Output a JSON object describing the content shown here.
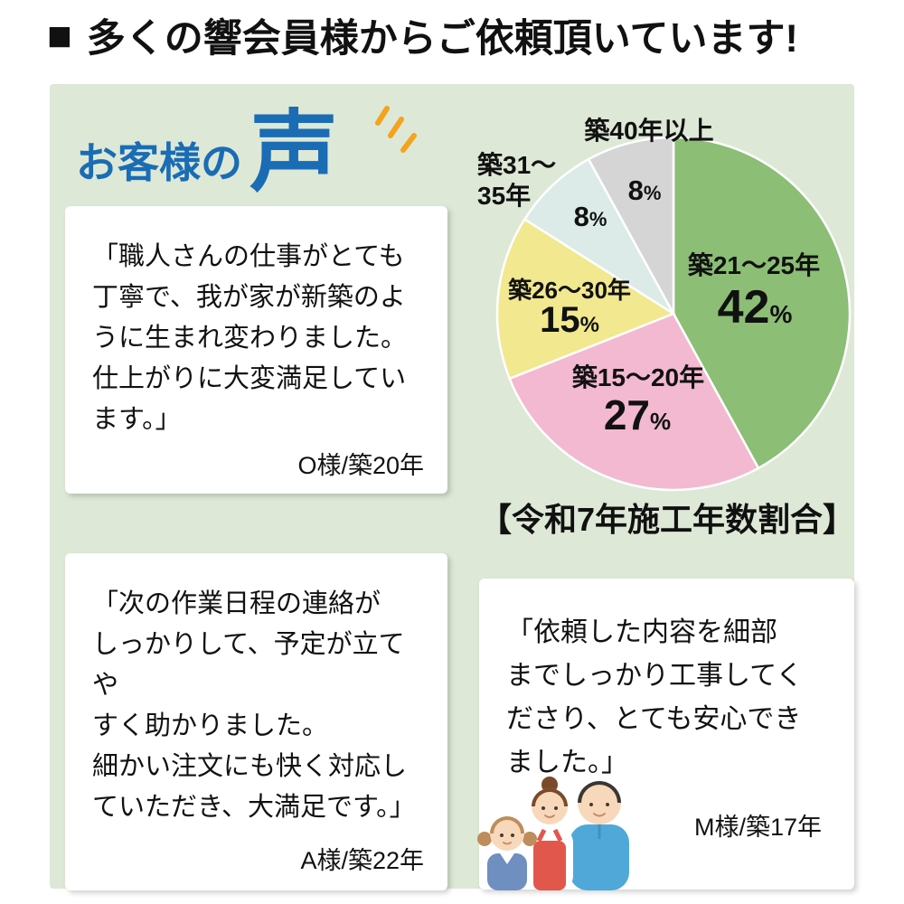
{
  "header": {
    "bullet": "■",
    "title": "多くの響会員様からご依頼頂いています!"
  },
  "voice": {
    "prefix": "お客様の",
    "emphasis": "声"
  },
  "chart_data": {
    "type": "pie",
    "caption": "【令和7年施工年数割合】",
    "unit": "%",
    "start_angle_deg": -90,
    "direction": "clockwise",
    "legend_position": "around-slices",
    "slices": [
      {
        "label": "築21〜25年",
        "value": 42,
        "color": "#8cbe76"
      },
      {
        "label": "築15〜20年",
        "value": 27,
        "color": "#f2b9d0"
      },
      {
        "label": "築26〜30年",
        "value": 15,
        "color": "#f1e88f"
      },
      {
        "label": "築31〜35年",
        "label_line1": "築31〜",
        "label_line2": "35年",
        "value": 8,
        "color": "#dcebe7"
      },
      {
        "label": "築40年以上",
        "value": 8,
        "color": "#d5d5d5"
      }
    ]
  },
  "testimonials": [
    {
      "quote": "「職人さんの仕事がとても\n丁寧で、我が家が新築のよ\nうに生まれ変わりました。\n仕上がりに大変満足してい\nます。」",
      "attribution": "O様/築20年"
    },
    {
      "quote": "「次の作業日程の連絡が\nしっかりして、予定が立てや\nすく助かりました。\n細かい注文にも快く対応し\nていただき、大満足です。」",
      "attribution": "A様/築22年"
    },
    {
      "quote": "「依頼した内容を細部\nまでしっかり工事してく\nださり、とても安心でき\nました。」",
      "attribution": "M様/築17年"
    }
  ],
  "colors": {
    "panel_bg": "#dde8d6",
    "title_blue": "#1a6cb5",
    "emphasis_orange": "#f5a21d",
    "text": "#111111"
  }
}
